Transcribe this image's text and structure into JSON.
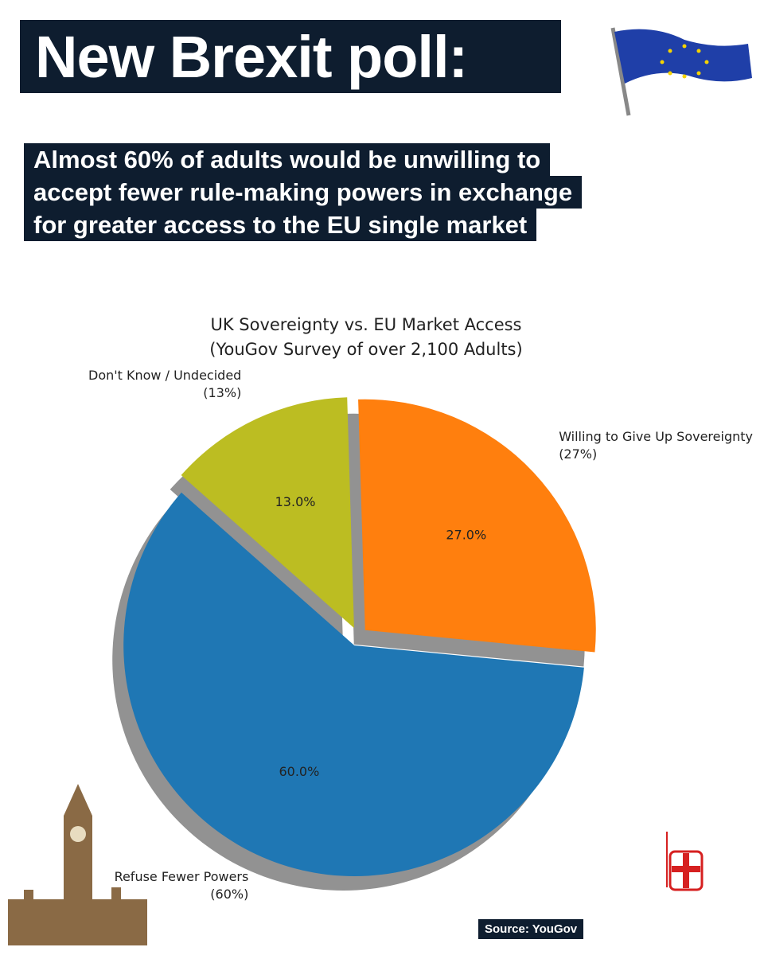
{
  "header": {
    "title": "New Brexit poll:",
    "subtitle_lines": [
      "Almost 60% of adults would be unwilling to",
      "accept fewer rule-making powers in exchange",
      "for greater access to the EU single market"
    ]
  },
  "chart_data": {
    "type": "pie",
    "title": "UK Sovereignty vs. EU Market Access",
    "subtitle": "(YouGov Survey of over 2,100 Adults)",
    "categories": [
      "Willing to Give Up Sovereignty",
      "Refuse Fewer Powers",
      "Don't Know / Undecided"
    ],
    "values": [
      27,
      60,
      13
    ],
    "value_labels": [
      "27.0%",
      "60.0%",
      "13.0%"
    ],
    "category_value_labels": [
      "(27%)",
      "(60%)",
      "(13%)"
    ],
    "colors": [
      "#ff7f0e",
      "#1f77b4",
      "#bcbd22"
    ],
    "shadow": true
  },
  "source": "Source: YouGov"
}
